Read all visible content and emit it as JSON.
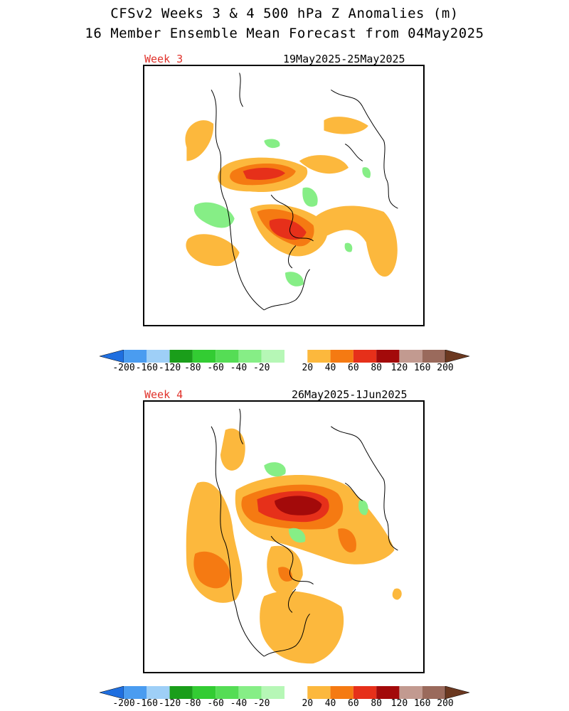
{
  "title_line1": "CFSv2 Weeks 3 & 4 500 hPa Z Anomalies (m)",
  "title_line2": "16 Member Ensemble Mean Forecast from 04May2025",
  "panels": [
    {
      "label": "Week 3",
      "dates": "19May2025-25May2025"
    },
    {
      "label": "Week 4",
      "dates": "26May2025-1Jun2025"
    }
  ],
  "colorbar": {
    "labels": [
      "-200",
      "-160",
      "-120",
      "-80",
      "-60",
      "-40",
      "-20",
      "20",
      "40",
      "60",
      "80",
      "120",
      "160",
      "200"
    ],
    "colors": [
      "#1f6fe0",
      "#4a9cf0",
      "#9ecff7",
      "#1a9e1a",
      "#33cc33",
      "#55dd55",
      "#86ee86",
      "#b6f7b6",
      "#ffffff",
      "#fcb83d",
      "#f57a12",
      "#e6301a",
      "#a30a0a",
      "#c29a90",
      "#9a6a5c",
      "#6b3820"
    ],
    "units": "m"
  },
  "colors": {
    "week_label": "#e0312a",
    "coastline": "#000000"
  }
}
